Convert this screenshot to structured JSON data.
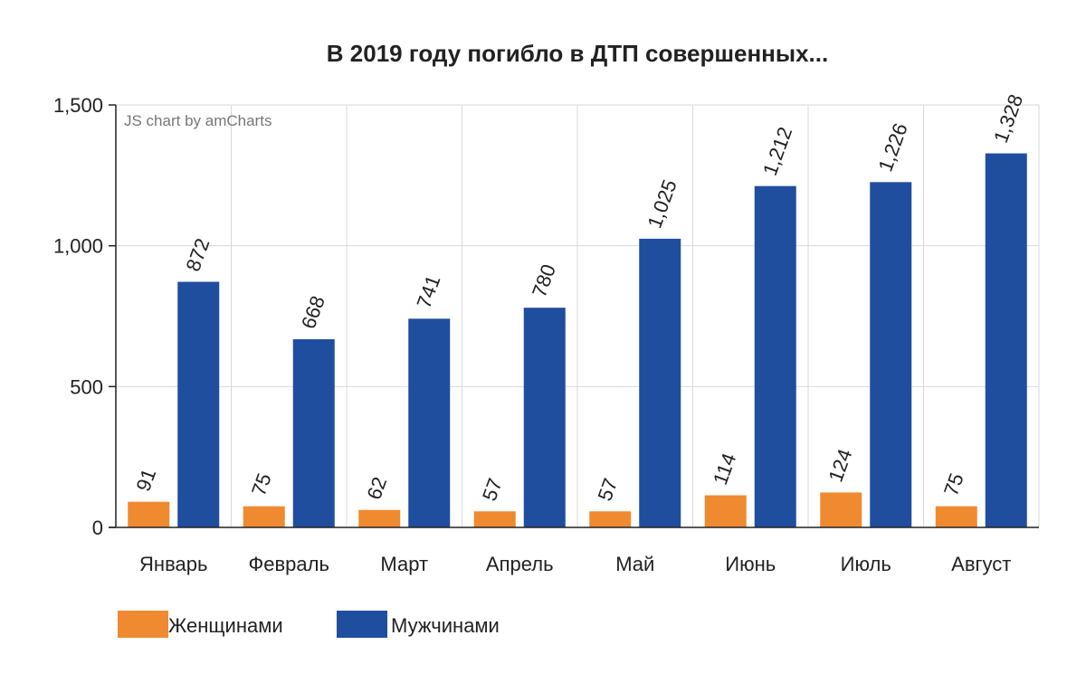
{
  "chart_data": {
    "type": "bar",
    "title": "В 2019 году погибло в ДТП совершенных...",
    "credit": "JS chart by amCharts",
    "categories": [
      "Январь",
      "Февраль",
      "Март",
      "Апрель",
      "Май",
      "Июнь",
      "Июль",
      "Август"
    ],
    "series": [
      {
        "name": "Женщинами",
        "color": "#F08A30",
        "values": [
          91,
          75,
          62,
          57,
          57,
          114,
          124,
          75
        ]
      },
      {
        "name": "Мужчинами",
        "color": "#1F4E9F",
        "values": [
          872,
          668,
          741,
          780,
          1025,
          1212,
          1226,
          1328
        ]
      }
    ],
    "ylim": [
      0,
      1500
    ],
    "yticks": [
      0,
      500,
      1000,
      1500
    ],
    "ytick_labels": [
      "0",
      "500",
      "1,000",
      "1,500"
    ],
    "data_labels": [
      [
        "91",
        "75",
        "62",
        "57",
        "57",
        "114",
        "124",
        "75"
      ],
      [
        "872",
        "668",
        "741",
        "780",
        "1,025",
        "1,212",
        "1,226",
        "1,328"
      ]
    ],
    "xlabel": "",
    "ylabel": "",
    "grid": true,
    "legend_position": "bottom-left"
  }
}
